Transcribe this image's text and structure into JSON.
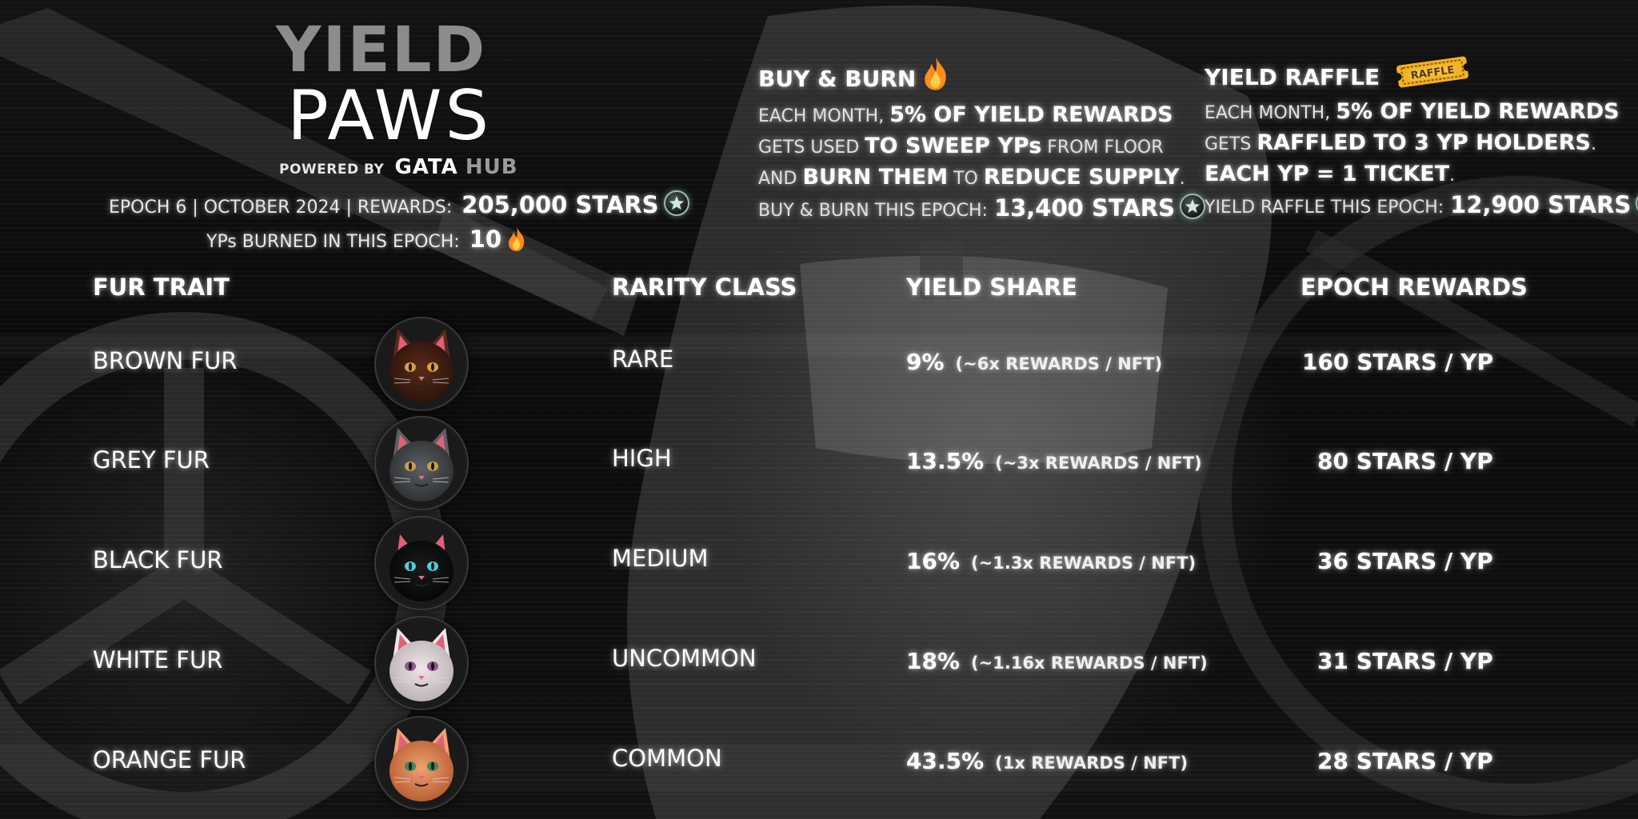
{
  "logo": {
    "line1": "YIELD",
    "line2": "PAWS",
    "powered_by": "POWERED BY",
    "brand1": "GATA",
    "brand2": "HUB"
  },
  "epoch": {
    "label": "EPOCH 6  |  OCTOBER 2024  |  REWARDS:",
    "rewards": "205,000 STARS",
    "burned_label": "YPs BURNED IN THIS EPOCH:",
    "burned_value": "10"
  },
  "buy_burn": {
    "title": "BUY & BURN",
    "line1_a": "EACH MONTH, ",
    "line1_b": "5% OF YIELD REWARDS",
    "line2_a": "GETS USED ",
    "line2_b": "TO SWEEP YPs",
    "line2_c": " FROM FLOOR",
    "line3_a": "AND ",
    "line3_b": "BURN THEM",
    "line3_c": " TO ",
    "line3_d": "REDUCE SUPPLY",
    "line3_e": ".",
    "this_epoch_label": "BUY & BURN THIS EPOCH:",
    "this_epoch_value": "13,400 STARS"
  },
  "raffle": {
    "title": "YIELD RAFFLE",
    "badge": "RAFFLE",
    "line1_a": "EACH MONTH, ",
    "line1_b": "5% OF YIELD REWARDS",
    "line2_a": "GETS ",
    "line2_b": "RAFFLED TO 3 YP HOLDERS",
    "line2_c": ".",
    "line3_b": "EACH YP = 1 TICKET",
    "line3_c": ".",
    "this_epoch_label": "YIELD RAFFLE THIS EPOCH:",
    "this_epoch_value": "12,900 STARS"
  },
  "table": {
    "headers": {
      "trait": "FUR TRAIT",
      "rarity": "RARITY CLASS",
      "share": "YIELD SHARE",
      "rewards": "EPOCH REWARDS"
    },
    "rows": [
      {
        "trait": "BROWN FUR",
        "rarity": "RARE",
        "share": "9%",
        "mult": "(~6x REWARDS / NFT)",
        "reward": "160 STARS / YP",
        "fur": "#5a2a1a",
        "fur2": "#2a120a",
        "eye": "#d8a040"
      },
      {
        "trait": "GREY FUR",
        "rarity": "HIGH",
        "share": "13.5%",
        "mult": "(~3x REWARDS / NFT)",
        "reward": "80 STARS / YP",
        "fur": "#5c5f63",
        "fur2": "#2b2d30",
        "eye": "#c9a040"
      },
      {
        "trait": "BLACK FUR",
        "rarity": "MEDIUM",
        "share": "16%",
        "mult": "(~1.3x REWARDS / NFT)",
        "reward": "36 STARS / YP",
        "fur": "#1a1a1c",
        "fur2": "#050506",
        "eye": "#4ad0d8"
      },
      {
        "trait": "WHITE FUR",
        "rarity": "UNCOMMON",
        "share": "18%",
        "mult": "(~1.16x REWARDS / NFT)",
        "reward": "31 STARS / YP",
        "fur": "#efe6e8",
        "fur2": "#b7aeb0",
        "eye": "#8a5a8a"
      },
      {
        "trait": "ORANGE FUR",
        "rarity": "COMMON",
        "share": "43.5%",
        "mult": "(1x REWARDS / NFT)",
        "reward": "28 STARS / YP",
        "fur": "#f2a070",
        "fur2": "#b45a30",
        "eye": "#3a8a5a"
      }
    ]
  },
  "icons": {
    "star": "star-coin-icon",
    "flame": "flame-icon",
    "raffle": "raffle-ticket-icon"
  },
  "colors": {
    "background": "#0a0a0a",
    "text": "#ffffff",
    "logo_grey": "#8c8c8c",
    "flame": "#ff8a1e",
    "ticket": "#f2b21e"
  }
}
